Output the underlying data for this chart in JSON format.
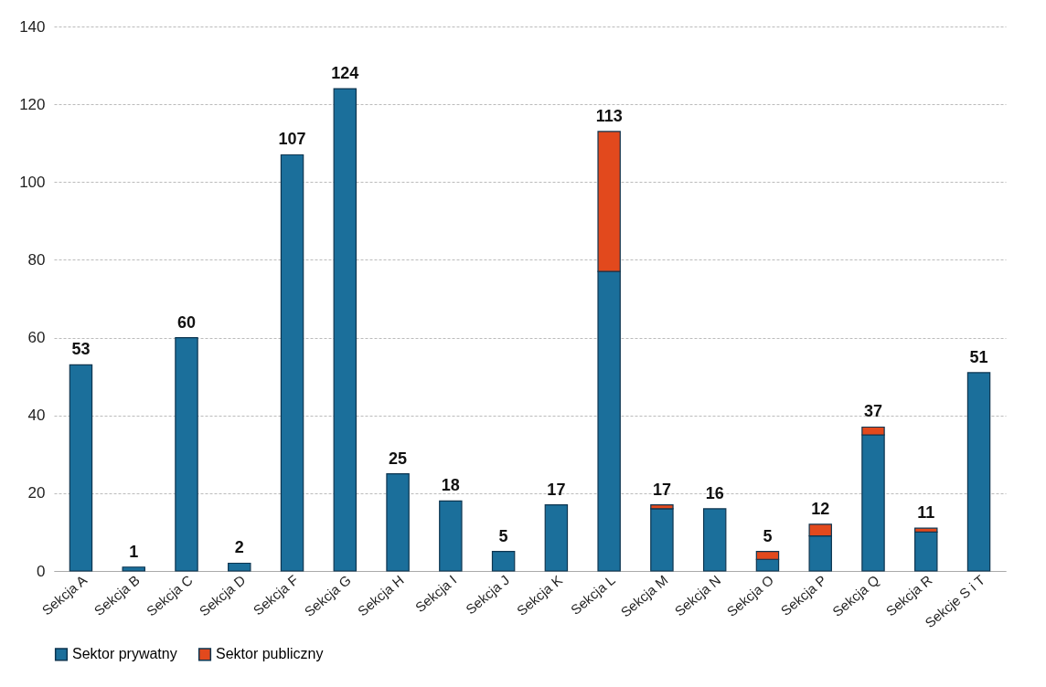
{
  "chart_data": {
    "type": "bar",
    "stacked": true,
    "categories": [
      "Sekcja A",
      "Sekcja B",
      "Sekcja C",
      "Sekcja D",
      "Sekcja F",
      "Sekcja G",
      "Sekcja H",
      "Sekcja I",
      "Sekcja J",
      "Sekcja K",
      "Sekcja L",
      "Sekcja M",
      "Sekcja N",
      "Sekcja O",
      "Sekcja P",
      "Sekcja Q",
      "Sekcja R",
      "Sekcje S i T"
    ],
    "series": [
      {
        "name": "Sektor prywatny",
        "color": "#1b6f9b",
        "values": [
          53,
          1,
          60,
          2,
          107,
          124,
          25,
          18,
          5,
          17,
          77,
          16,
          16,
          3,
          9,
          35,
          10,
          51
        ]
      },
      {
        "name": "Sektor publiczny",
        "color": "#e2491d",
        "values": [
          null,
          null,
          null,
          null,
          null,
          null,
          null,
          null,
          null,
          null,
          36,
          1,
          null,
          2,
          3,
          2,
          1,
          null
        ]
      }
    ],
    "totals": [
      "53",
      "1",
      "60",
      "2",
      "107",
      "124",
      "25",
      "18",
      "5",
      "17",
      "113",
      "17",
      "16",
      "5",
      "12",
      "37",
      "11",
      "51"
    ],
    "ylim": [
      0,
      140
    ],
    "yticks": [
      0,
      20,
      40,
      60,
      80,
      100,
      120,
      140
    ],
    "grid": "y",
    "legend": "bottom"
  }
}
